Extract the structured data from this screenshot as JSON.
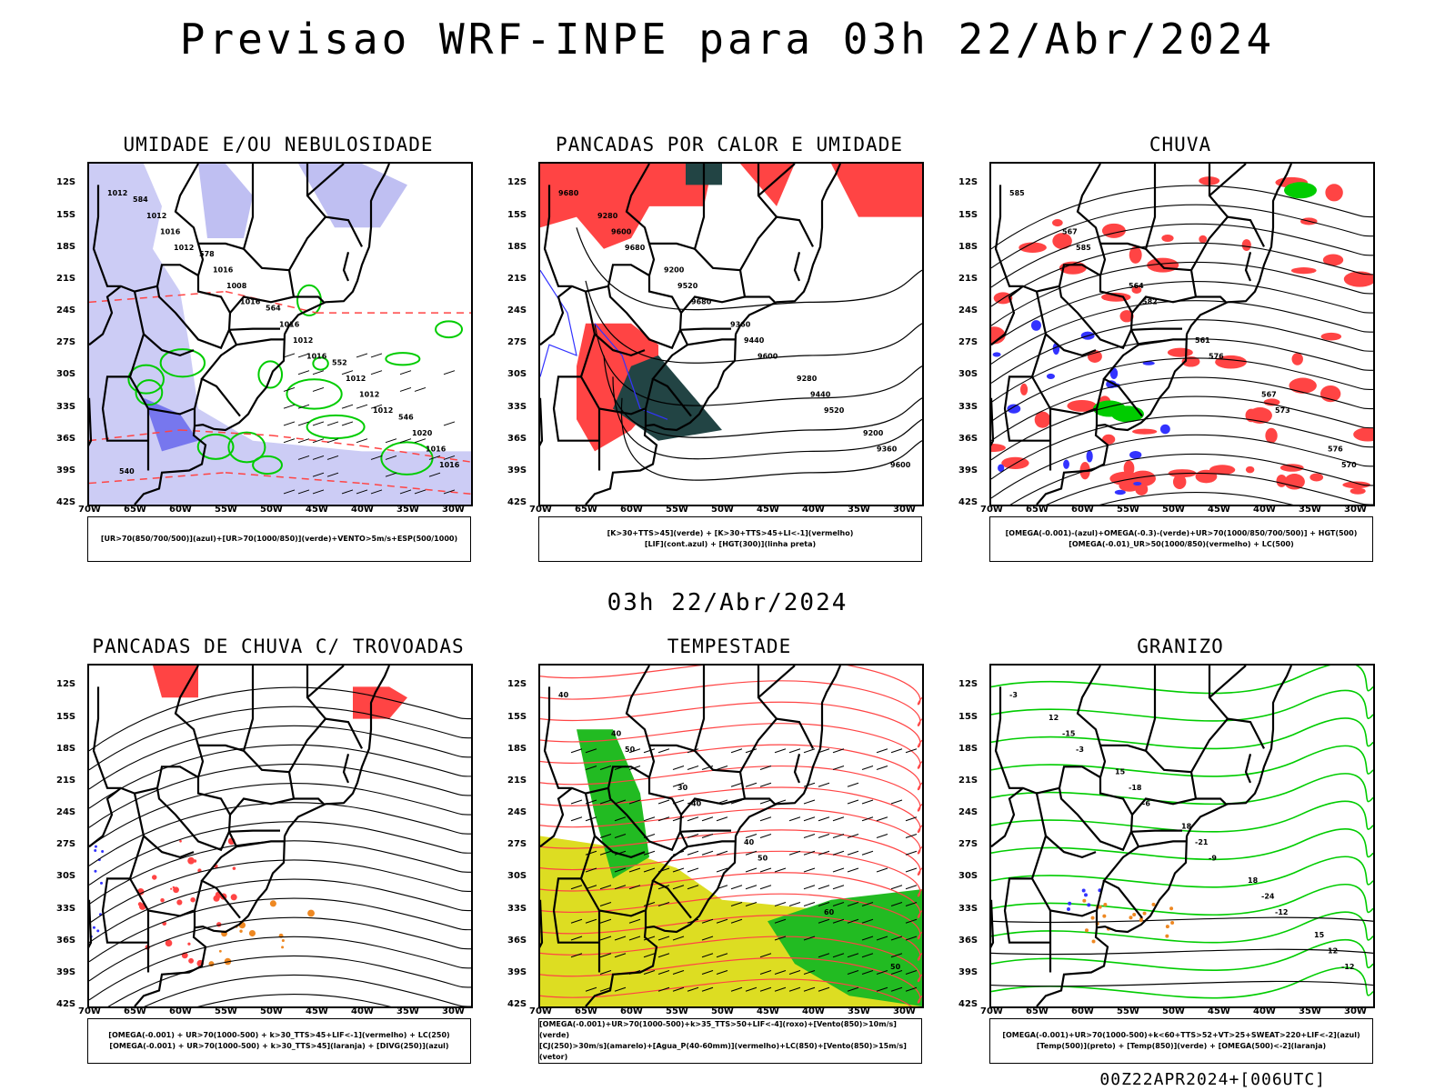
{
  "title": "Previsao WRF-INPE  para 03h 22/Abr/2024",
  "subtitle": "03h 22/Abr/2024",
  "footer": "00Z22APR2024+[006UTC]",
  "axis": {
    "lat_labels": [
      "12S",
      "15S",
      "18S",
      "21S",
      "24S",
      "27S",
      "30S",
      "33S",
      "36S",
      "39S",
      "42S"
    ],
    "lon_labels": [
      "70W",
      "65W",
      "60W",
      "55W",
      "50W",
      "45W",
      "40W",
      "35W",
      "30W"
    ]
  },
  "colors": {
    "blue": "#3333ff",
    "lightblue": "#aaaaee",
    "green": "#00cc00",
    "red": "#ff4444",
    "darkgreen": "#224444",
    "yellow": "#dddd22",
    "orange": "#ee8822"
  },
  "panels": [
    {
      "id": "umidade",
      "title": "UMIDADE E/OU NEBULOSIDADE",
      "legend": [
        "[UR>70(850/700/500)](azul)+[UR>70(1000/850)](verde)+VENTO>5m/s+ESP(500/1000)"
      ],
      "contour_labels": [
        "1012",
        "1012",
        "1016",
        "1016",
        "1012",
        "1016",
        "1016",
        "1008",
        "1012",
        "1012",
        "1016",
        "1012",
        "1016",
        "1016",
        "1012",
        "1020",
        "584",
        "578",
        "564",
        "552",
        "546",
        "540"
      ]
    },
    {
      "id": "pancadas-calor",
      "title": "PANCADAS POR CALOR E UMIDADE",
      "legend": [
        "[K>30+TTS>45](verde) + [K>30+TTS>45+LI<-1](vermelho)",
        "[LIF](cont.azul) + [HGT(300)](linha preta)"
      ],
      "contour_labels": [
        "9680",
        "9680",
        "9680",
        "9600",
        "9520",
        "9600",
        "9600",
        "9520",
        "9440",
        "9440",
        "9360",
        "9280",
        "9200",
        "9360",
        "9280",
        "9200"
      ]
    },
    {
      "id": "chuva",
      "title": "CHUVA",
      "legend": [
        "[OMEGA(-0.001)-(azul)+OMEGA(-0.3)-(verde)+UR>70(1000/850/700/500)] + HGT(500)",
        "[OMEGA(-0.01)_UR>50(1000/850)(vermelho) + LC(500)"
      ],
      "contour_labels": [
        "585",
        "585",
        "582",
        "576",
        "573",
        "570",
        "567",
        "564",
        "561",
        "567",
        "576"
      ]
    },
    {
      "id": "pancadas-trovoadas",
      "title": "PANCADAS DE CHUVA C/ TROVOADAS",
      "legend": [
        "[OMEGA(-0.001) + UR>70(1000-500) + k>30_TTS>45+LIF<-1](vermelho) + LC(250)",
        "[OMEGA(-0.001) + UR>70(1000-500) + k>30_TTS>45](laranja) + [DIVG(250)](azul)"
      ],
      "contour_labels": []
    },
    {
      "id": "tempestade",
      "title": "TEMPESTADE",
      "legend": [
        "[OMEGA(-0.001)+UR>70(1000-500)+k>35_TTS>50+LIF<-4](roxo)+[Vento(850)>10m/s](verde)",
        "[CJ(250)>30m/s](amarelo)+[Agua_P(40-60mm)](vermelho)+LC(850)+[Vento(850)>15m/s](vetor)"
      ],
      "contour_labels": [
        "40",
        "50",
        "40",
        "50",
        "60",
        "50",
        "40",
        "30",
        "40"
      ]
    },
    {
      "id": "granizo",
      "title": "GRANIZO",
      "legend": [
        "[OMEGA(-0.001)+UR>70(1000-500)+k<60+TTS>52+VT>25+SWEAT>220+LIF<-2](azul)",
        "[Temp(500)](preto) + [Temp(850)](verde) + [OMEGA(500)<-2](laranja)"
      ],
      "contour_labels": [
        "-3",
        "-3",
        "-6",
        "-9",
        "-12",
        "-12",
        "-15",
        "-18",
        "-21",
        "-24",
        "12",
        "12",
        "15",
        "18",
        "18",
        "15"
      ]
    }
  ]
}
